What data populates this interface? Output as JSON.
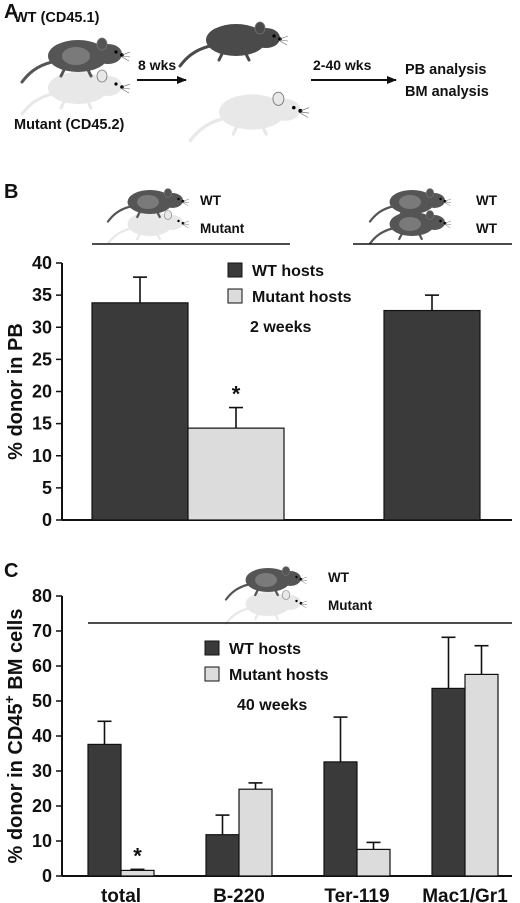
{
  "panel_a": {
    "letter": "A",
    "wt_label": "WT (CD45.1)",
    "mutant_label": "Mutant (CD45.2)",
    "step1": "8 wks",
    "step2": "2-40 wks",
    "outcome1": "PB analysis",
    "outcome2": "BM analysis"
  },
  "panel_b": {
    "letter": "B",
    "pair1_top": "WT",
    "pair1_bottom": "Mutant",
    "pair2_top": "WT",
    "pair2_bottom": "WT"
  },
  "panel_c": {
    "letter": "C",
    "pair_top": "WT",
    "pair_bottom": "Mutant"
  },
  "colors": {
    "wt_hosts": "#3a3a3a",
    "mutant_hosts": "#dcdcdc",
    "dark_mouse": "#555555",
    "light_mouse": "#e6e6e6"
  },
  "icons": [
    "mouse-icon",
    "arrow-icon"
  ],
  "chart_data": [
    {
      "type": "bar",
      "ylabel": "% donor in PB",
      "ylim": [
        0,
        40
      ],
      "yticks": [
        0,
        5,
        10,
        15,
        20,
        25,
        30,
        35,
        40
      ],
      "legend": [
        "WT hosts",
        "Mutant hosts"
      ],
      "legend_placement": "top-center",
      "annotation": "2 weeks",
      "categories": [
        "WT/Mutant parabiosis",
        "WT/WT parabiosis"
      ],
      "series": [
        {
          "name": "WT hosts",
          "values": [
            33.8,
            32.6
          ],
          "errors": [
            4.0,
            2.4
          ]
        },
        {
          "name": "Mutant hosts",
          "values": [
            14.3,
            null
          ],
          "errors": [
            3.2,
            null
          ]
        }
      ],
      "significance": [
        {
          "series": "Mutant hosts",
          "category": "WT/Mutant parabiosis",
          "mark": "*"
        }
      ],
      "grid": false
    },
    {
      "type": "bar",
      "ylabel_parts": [
        "% donor in  CD45",
        "+",
        " BM cells"
      ],
      "ylim": [
        0,
        80
      ],
      "yticks": [
        0,
        10,
        20,
        30,
        40,
        50,
        60,
        70,
        80
      ],
      "legend": [
        "WT hosts",
        "Mutant hosts"
      ],
      "legend_placement": "top-center",
      "annotation": "40 weeks",
      "categories": [
        "total",
        "B-220",
        "Ter-119",
        "Mac1/Gr1"
      ],
      "series": [
        {
          "name": "WT hosts",
          "values": [
            37.6,
            11.8,
            32.6,
            53.6
          ],
          "errors": [
            6.6,
            5.6,
            12.8,
            14.6
          ]
        },
        {
          "name": "Mutant hosts",
          "values": [
            1.6,
            24.8,
            7.6,
            57.6
          ],
          "errors": [
            0.3,
            1.8,
            2.0,
            8.2
          ]
        }
      ],
      "significance": [
        {
          "series": "Mutant hosts",
          "category": "total",
          "mark": "*"
        }
      ],
      "grid": false
    }
  ]
}
